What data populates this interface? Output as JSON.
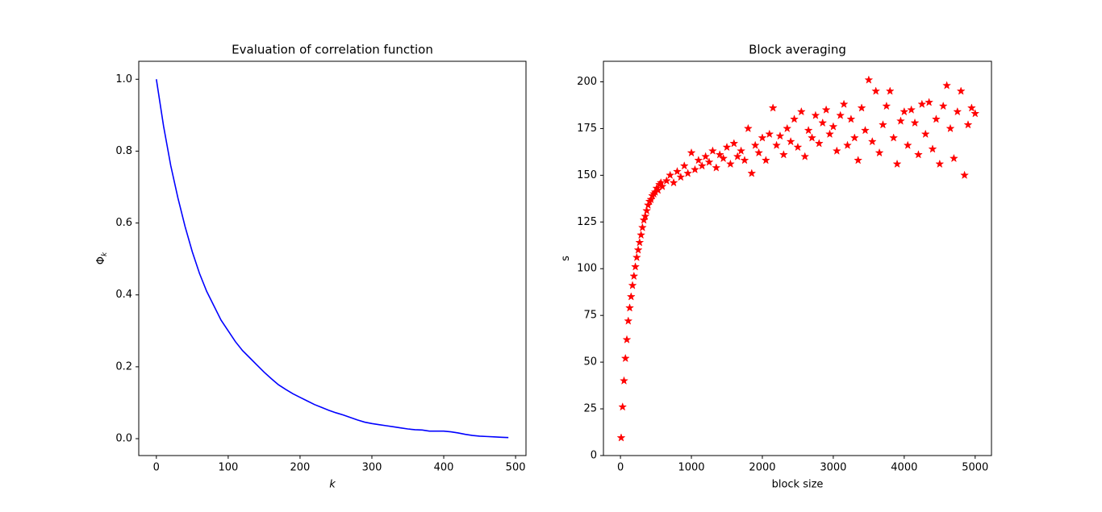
{
  "chart_data": [
    {
      "type": "line",
      "title": "Evaluation of correlation function",
      "xlabel": "k",
      "ylabel": {
        "main": "Φ",
        "sub": "k"
      },
      "x": [
        0,
        10,
        20,
        30,
        40,
        50,
        60,
        70,
        80,
        90,
        100,
        110,
        120,
        130,
        140,
        150,
        160,
        170,
        180,
        190,
        200,
        210,
        220,
        230,
        240,
        250,
        260,
        270,
        280,
        290,
        300,
        310,
        320,
        330,
        340,
        350,
        360,
        370,
        380,
        390,
        400,
        410,
        420,
        430,
        440,
        450,
        460,
        470,
        480,
        490
      ],
      "values": [
        1.0,
        0.87,
        0.76,
        0.67,
        0.59,
        0.52,
        0.46,
        0.41,
        0.37,
        0.33,
        0.3,
        0.27,
        0.245,
        0.225,
        0.205,
        0.185,
        0.167,
        0.15,
        0.137,
        0.125,
        0.115,
        0.105,
        0.095,
        0.087,
        0.079,
        0.072,
        0.066,
        0.059,
        0.052,
        0.046,
        0.042,
        0.039,
        0.036,
        0.033,
        0.03,
        0.027,
        0.025,
        0.024,
        0.021,
        0.021,
        0.021,
        0.019,
        0.016,
        0.012,
        0.009,
        0.007,
        0.006,
        0.005,
        0.004,
        0.003
      ],
      "color": "#0000ff",
      "xlim": [
        -24.5,
        514.5
      ],
      "xticks": [
        0,
        100,
        200,
        300,
        400,
        500
      ],
      "ylim": [
        -0.047,
        1.05
      ],
      "yticks": [
        {
          "value": 0,
          "label": "0.0"
        },
        0.2,
        0.4,
        0.6,
        0.8,
        {
          "value": 1,
          "label": "1.0"
        }
      ]
    },
    {
      "type": "scatter",
      "title": "Block averaging",
      "xlabel": "block size",
      "ylabel": {
        "main": "s"
      },
      "x": [
        10,
        30,
        50,
        70,
        90,
        110,
        130,
        150,
        170,
        190,
        210,
        230,
        250,
        270,
        290,
        310,
        330,
        350,
        370,
        390,
        410,
        430,
        450,
        470,
        490,
        510,
        530,
        550,
        570,
        590,
        650,
        700,
        750,
        800,
        850,
        900,
        950,
        1000,
        1050,
        1100,
        1150,
        1200,
        1250,
        1300,
        1350,
        1400,
        1450,
        1500,
        1550,
        1600,
        1650,
        1700,
        1750,
        1800,
        1850,
        1900,
        1950,
        2000,
        2050,
        2100,
        2150,
        2200,
        2250,
        2300,
        2350,
        2400,
        2450,
        2500,
        2550,
        2600,
        2650,
        2700,
        2750,
        2800,
        2850,
        2900,
        2950,
        3000,
        3050,
        3100,
        3150,
        3200,
        3250,
        3300,
        3350,
        3400,
        3450,
        3500,
        3550,
        3600,
        3650,
        3700,
        3750,
        3800,
        3850,
        3900,
        3950,
        4000,
        4050,
        4100,
        4150,
        4200,
        4250,
        4300,
        4350,
        4400,
        4450,
        4500,
        4550,
        4600,
        4650,
        4700,
        4750,
        4800,
        4850,
        4900,
        4950,
        5000
      ],
      "values": [
        9.5,
        26,
        40,
        52,
        62,
        72,
        79,
        85,
        91,
        96,
        101,
        106,
        110,
        114,
        118,
        122,
        126,
        128,
        131,
        134,
        136,
        137,
        139,
        140,
        141,
        143,
        142,
        145,
        146,
        144,
        147,
        150,
        146,
        152,
        149,
        155,
        151,
        162,
        153,
        158,
        155,
        160,
        157,
        163,
        154,
        161,
        159,
        165,
        156,
        167,
        160,
        163,
        158,
        175,
        151,
        166,
        162,
        170,
        158,
        172,
        186,
        166,
        171,
        161,
        175,
        168,
        180,
        165,
        184,
        160,
        174,
        170,
        182,
        167,
        178,
        185,
        172,
        176,
        163,
        182,
        188,
        166,
        180,
        170,
        158,
        186,
        174,
        201,
        168,
        195,
        162,
        177,
        187,
        195,
        170,
        156,
        179,
        184,
        166,
        185,
        178,
        161,
        188,
        172,
        189,
        164,
        180,
        156,
        187,
        198,
        175,
        159,
        184,
        195,
        150,
        177,
        186,
        183
      ],
      "color": "#ff0000",
      "xlim": [
        -240,
        5230
      ],
      "xticks": [
        0,
        1000,
        2000,
        3000,
        4000,
        5000
      ],
      "ylim": [
        0,
        211
      ],
      "yticks": [
        0,
        25,
        50,
        75,
        100,
        125,
        150,
        175,
        200
      ]
    }
  ]
}
